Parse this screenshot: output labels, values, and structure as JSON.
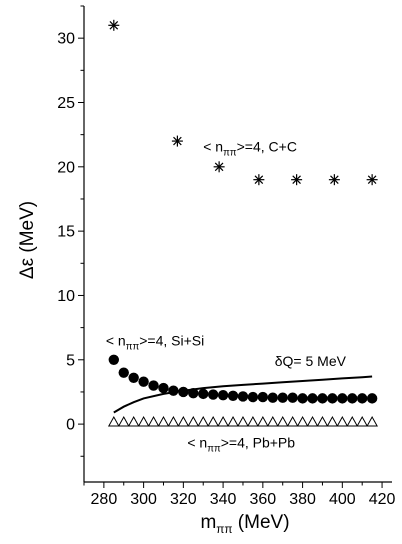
{
  "chart_data": {
    "type": "scatter",
    "xlabel": {
      "base": "m",
      "sub": "ππ",
      "rest": " (MeV)"
    },
    "ylabel": "Δε (MeV)",
    "xlim": [
      270,
      425
    ],
    "ylim": [
      -4.5,
      32.5
    ],
    "x_ticks": [
      280,
      300,
      320,
      340,
      360,
      380,
      400,
      420
    ],
    "y_ticks": [
      0,
      5,
      10,
      15,
      20,
      25,
      30
    ],
    "grid": false,
    "series": [
      {
        "name": "< nππ>=4, C+C",
        "marker": "asterisk",
        "x": [
          285,
          317,
          338,
          358,
          377,
          396,
          415
        ],
        "y": [
          31,
          22,
          20,
          19,
          19,
          19,
          19
        ]
      },
      {
        "name": "< nππ>=4, Si+Si",
        "marker": "filled-circle",
        "x": [
          285,
          290,
          295,
          300,
          305,
          310,
          315,
          320,
          325,
          330,
          335,
          340,
          345,
          350,
          355,
          360,
          365,
          370,
          375,
          380,
          385,
          390,
          395,
          400,
          405,
          410,
          415
        ],
        "y": [
          5.0,
          4.0,
          3.6,
          3.3,
          3.0,
          2.8,
          2.6,
          2.5,
          2.4,
          2.35,
          2.3,
          2.25,
          2.2,
          2.15,
          2.1,
          2.1,
          2.05,
          2.05,
          2.05,
          2.0,
          2.0,
          2.0,
          2.0,
          2.0,
          2.0,
          2.0,
          2.0
        ]
      },
      {
        "name": "< nππ>=4, Pb+Pb",
        "marker": "open-triangle",
        "x": [
          285,
          290,
          295,
          300,
          305,
          310,
          315,
          320,
          325,
          330,
          335,
          340,
          345,
          350,
          355,
          360,
          365,
          370,
          375,
          380,
          385,
          390,
          395,
          400,
          405,
          410,
          415
        ],
        "y": [
          0.2,
          0.2,
          0.2,
          0.2,
          0.2,
          0.2,
          0.2,
          0.2,
          0.2,
          0.2,
          0.2,
          0.2,
          0.2,
          0.2,
          0.2,
          0.2,
          0.2,
          0.2,
          0.2,
          0.2,
          0.2,
          0.2,
          0.2,
          0.2,
          0.2,
          0.2,
          0.2
        ]
      },
      {
        "name": "δQ= 5 MeV",
        "marker": "line",
        "x": [
          285,
          290,
          295,
          300,
          310,
          320,
          330,
          340,
          350,
          360,
          370,
          380,
          390,
          400,
          410,
          415
        ],
        "y": [
          0.9,
          1.35,
          1.7,
          2.0,
          2.35,
          2.6,
          2.8,
          2.95,
          3.05,
          3.15,
          3.25,
          3.35,
          3.45,
          3.55,
          3.65,
          3.7
        ]
      }
    ],
    "annotations": [
      {
        "base": "< n",
        "sub": "ππ",
        "rest": ">=4, C+C",
        "x": 330,
        "y": 21.2
      },
      {
        "base": "< n",
        "sub": "ππ",
        "rest": ">=4, Si+Si",
        "x": 281,
        "y": 6.1
      },
      {
        "base": "δQ= 5 MeV",
        "sub": "",
        "rest": "",
        "x": 366,
        "y": 4.5
      },
      {
        "base": "< n",
        "sub": "ππ",
        "rest": ">=4, Pb+Pb",
        "x": 322,
        "y": -1.8
      }
    ]
  }
}
